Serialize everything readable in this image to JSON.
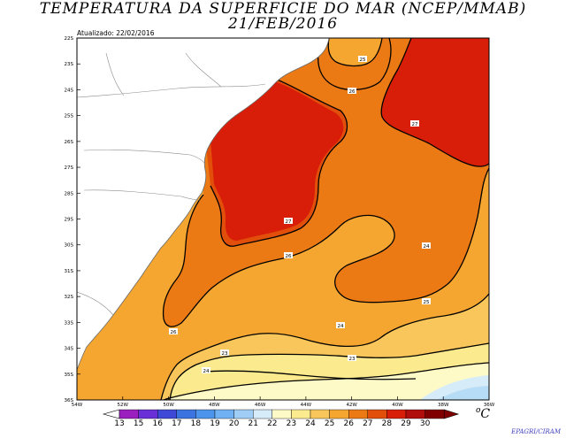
{
  "title_line1": "TEMPERATURA DA SUPERFICIE DO MAR (NCEP/MMAB)",
  "title_line2": "21/FEB/2016",
  "updated": "Atualizado: 22/02/2016",
  "unit": "C",
  "credit": "EPAGRI/CIRAM",
  "lat_labels": [
    "22S",
    "23S",
    "24S",
    "25S",
    "26S",
    "27S",
    "28S",
    "29S",
    "30S",
    "31S",
    "32S",
    "33S",
    "34S",
    "35S",
    "36S"
  ],
  "lon_labels": [
    "54W",
    "52W",
    "50W",
    "48W",
    "46W",
    "44W",
    "42W",
    "40W",
    "38W",
    "36W"
  ],
  "legend": [
    {
      "value": "13",
      "color": "#9b1fbf"
    },
    {
      "value": "15",
      "color": "#6a2fd6"
    },
    {
      "value": "16",
      "color": "#3f49d8"
    },
    {
      "value": "17",
      "color": "#3b74e0"
    },
    {
      "value": "18",
      "color": "#4d94ec"
    },
    {
      "value": "19",
      "color": "#6fb1f3"
    },
    {
      "value": "20",
      "color": "#9fcdf5"
    },
    {
      "value": "21",
      "color": "#d6ecf8"
    },
    {
      "value": "22",
      "color": "#fefac8"
    },
    {
      "value": "23",
      "color": "#fcea8e"
    },
    {
      "value": "24",
      "color": "#f8c65a"
    },
    {
      "value": "25",
      "color": "#f4a630"
    },
    {
      "value": "26",
      "color": "#ec7a14"
    },
    {
      "value": "27",
      "color": "#e24f0a"
    },
    {
      "value": "28",
      "color": "#d81e08"
    },
    {
      "value": "29",
      "color": "#b00d0d"
    },
    {
      "value": "30",
      "color": "#800000"
    }
  ],
  "contour_labels": [
    "25",
    "26",
    "27",
    "27",
    "26",
    "24",
    "25",
    "26",
    "24",
    "23",
    "23",
    "24"
  ]
}
